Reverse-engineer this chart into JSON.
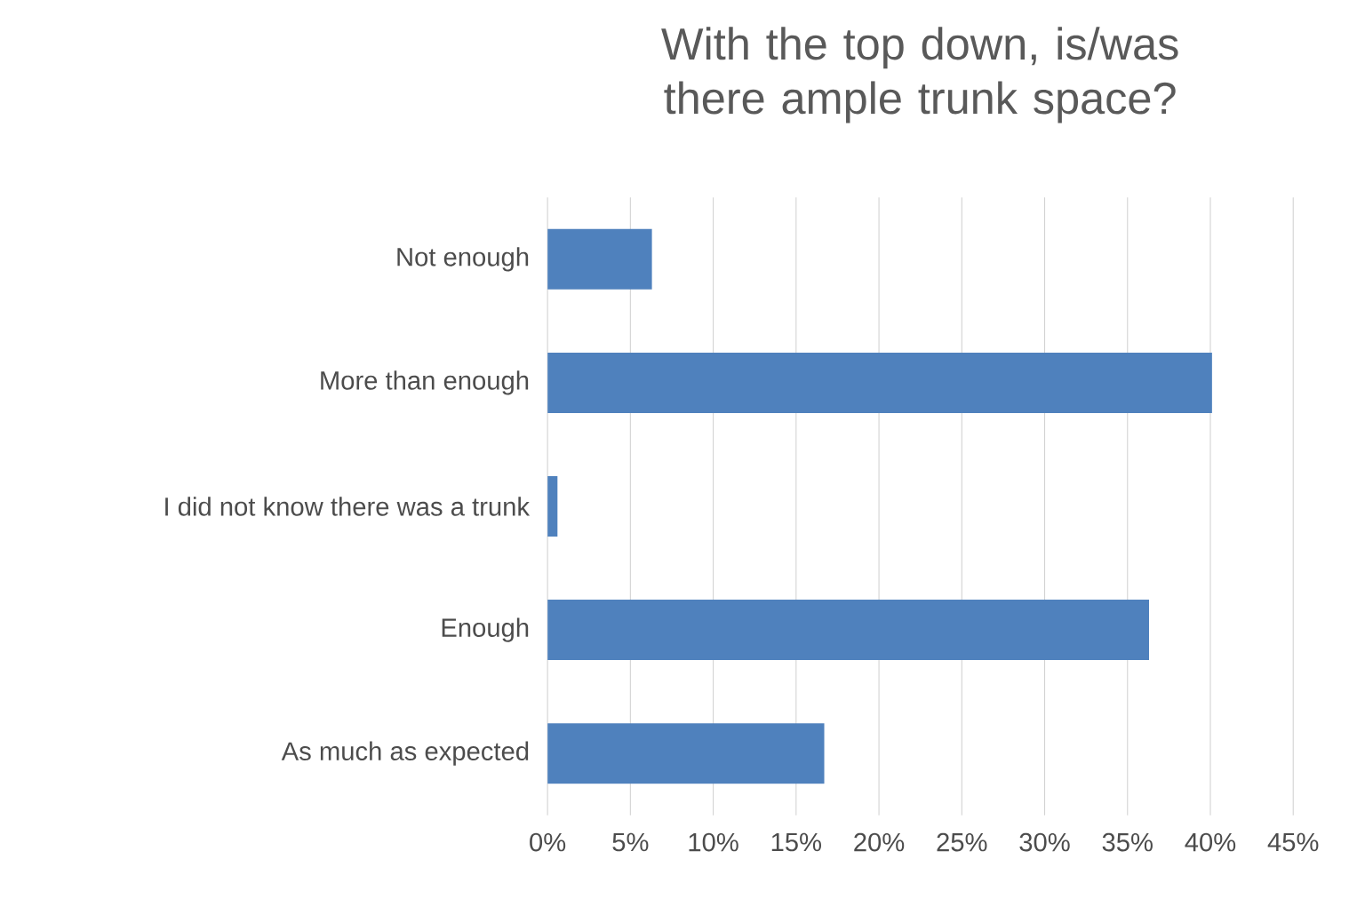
{
  "chart_data": {
    "type": "bar",
    "orientation": "horizontal",
    "title": "With the top down, is/was there ample trunk space?",
    "categories": [
      "Not enough",
      "More than enough",
      "I did not know there was a trunk",
      "Enough",
      "As much as expected"
    ],
    "values": [
      6.3,
      40.1,
      0.6,
      36.3,
      16.7
    ],
    "color": "#4f81bd",
    "xlim": [
      0,
      45
    ],
    "xticks": [
      {
        "value": 0,
        "label": "0%"
      },
      {
        "value": 5,
        "label": "5%"
      },
      {
        "value": 10,
        "label": "10%"
      },
      {
        "value": 15,
        "label": "15%"
      },
      {
        "value": 20,
        "label": "20%"
      },
      {
        "value": 25,
        "label": "25%"
      },
      {
        "value": 30,
        "label": "30%"
      },
      {
        "value": 35,
        "label": "35%"
      },
      {
        "value": 40,
        "label": "40%"
      },
      {
        "value": 45,
        "label": "45%"
      }
    ],
    "grid": "x"
  }
}
